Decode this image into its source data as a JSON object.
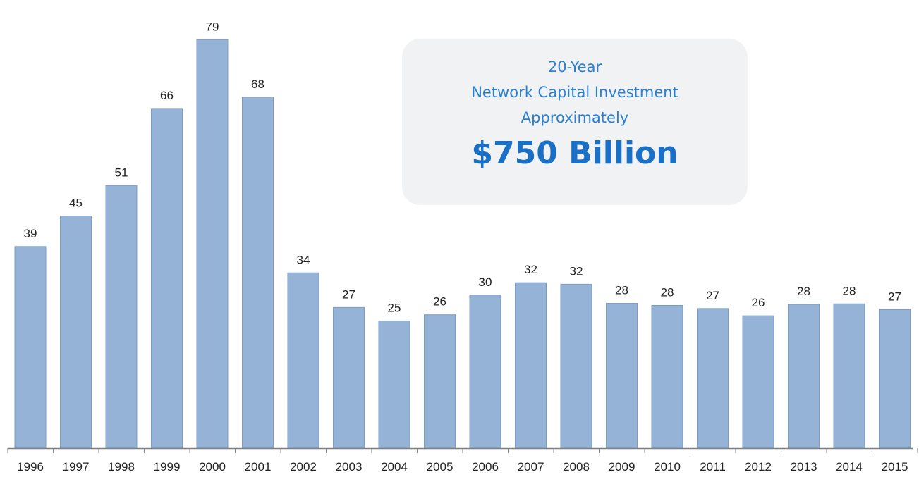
{
  "callout": {
    "line1": "20-Year",
    "line2": "Network Capital Investment",
    "line3": "Approximately",
    "amount": "$750 Billion"
  },
  "chart_data": {
    "type": "bar",
    "categories": [
      "1996",
      "1997",
      "1998",
      "1999",
      "2000",
      "2001",
      "2002",
      "2003",
      "2004",
      "2005",
      "2006",
      "2007",
      "2008",
      "2009",
      "2010",
      "2011",
      "2012",
      "2013",
      "2014",
      "2015"
    ],
    "values": [
      39,
      45,
      51,
      66,
      79,
      68,
      34,
      27,
      25,
      26,
      30,
      32,
      32,
      28,
      28,
      27,
      26,
      28,
      28,
      27
    ],
    "bar_heights": [
      39.0,
      44.9,
      50.8,
      65.7,
      79.0,
      67.9,
      33.9,
      27.2,
      24.6,
      25.8,
      29.6,
      32.0,
      31.7,
      28.0,
      27.6,
      27.0,
      25.6,
      27.8,
      27.9,
      26.8
    ],
    "ylim": [
      0,
      80
    ],
    "bar_color": "#95b3d7",
    "bar_edge_color": "#7d9cc4",
    "axis_color": "#7f7f7f",
    "label_color": "#222222",
    "grid": false,
    "legend": "none",
    "title": "",
    "xlabel": "",
    "ylabel": ""
  }
}
